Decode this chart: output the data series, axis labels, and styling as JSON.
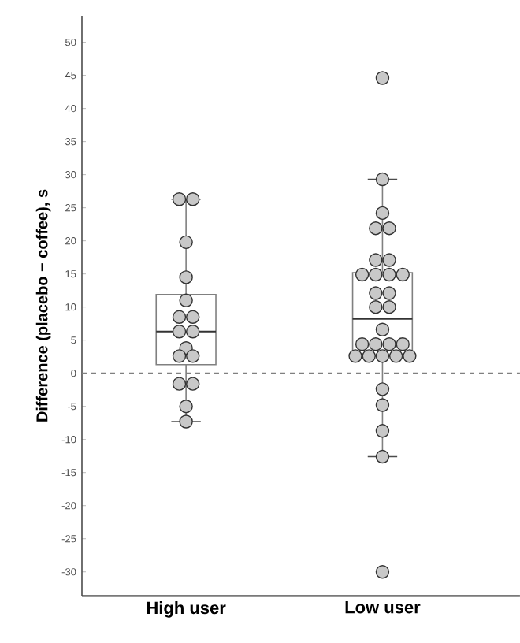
{
  "chart_data": {
    "type": "box",
    "ylabel": "Difference (placebo − coffee), s",
    "categories": [
      "High user",
      "Low user"
    ],
    "boxes": [
      {
        "low": -7.3,
        "q1": 1.3,
        "median": 6.3,
        "q3": 11.9,
        "high": 26.3
      },
      {
        "low": -12.6,
        "q1": 2.6,
        "median": 8.2,
        "q3": 15.2,
        "high": 29.3
      }
    ],
    "series": [
      {
        "type": "scatter",
        "color": "#c8c8c8",
        "x": [
          "High user",
          "High user",
          "High user",
          "High user",
          "High user",
          "High user",
          "High user",
          "High user",
          "High user",
          "High user",
          "High user",
          "High user",
          "High user",
          "High user",
          "High user",
          "High user"
        ],
        "values": [
          26.3,
          26.3,
          19.8,
          14.5,
          11,
          8.5,
          8.5,
          6.3,
          6.3,
          3.8,
          2.6,
          2.6,
          -1.6,
          -1.6,
          -5,
          -7.3
        ]
      },
      {
        "type": "scatter",
        "color": "#c8c8c8",
        "x": [
          "Low user",
          "Low user",
          "Low user",
          "Low user",
          "Low user",
          "Low user",
          "Low user",
          "Low user",
          "Low user",
          "Low user",
          "Low user",
          "Low user",
          "Low user",
          "Low user",
          "Low user",
          "Low user",
          "Low user",
          "Low user",
          "Low user",
          "Low user",
          "Low user",
          "Low user",
          "Low user",
          "Low user",
          "Low user",
          "Low user",
          "Low user",
          "Low user",
          "Low user",
          "Low user"
        ],
        "values": [
          44.6,
          29.3,
          24.2,
          21.9,
          21.9,
          17.1,
          17.1,
          14.9,
          14.9,
          14.9,
          14.9,
          12.1,
          12.1,
          10,
          10,
          6.6,
          4.4,
          4.4,
          4.4,
          4.4,
          2.6,
          2.6,
          2.6,
          2.6,
          2.6,
          -2.4,
          -4.8,
          -8.7,
          -12.6,
          -30
        ]
      }
    ],
    "ylim": [
      -33.6,
      54
    ],
    "yticks": [
      -30,
      -25,
      -20,
      -15,
      -10,
      -5,
      0,
      5,
      10,
      15,
      20,
      25,
      30,
      35,
      40,
      45,
      50
    ],
    "ref_lines": [
      {
        "axis": "y",
        "value": 0,
        "color": "#808080",
        "line_style": "dashed"
      }
    ],
    "grid": false
  }
}
